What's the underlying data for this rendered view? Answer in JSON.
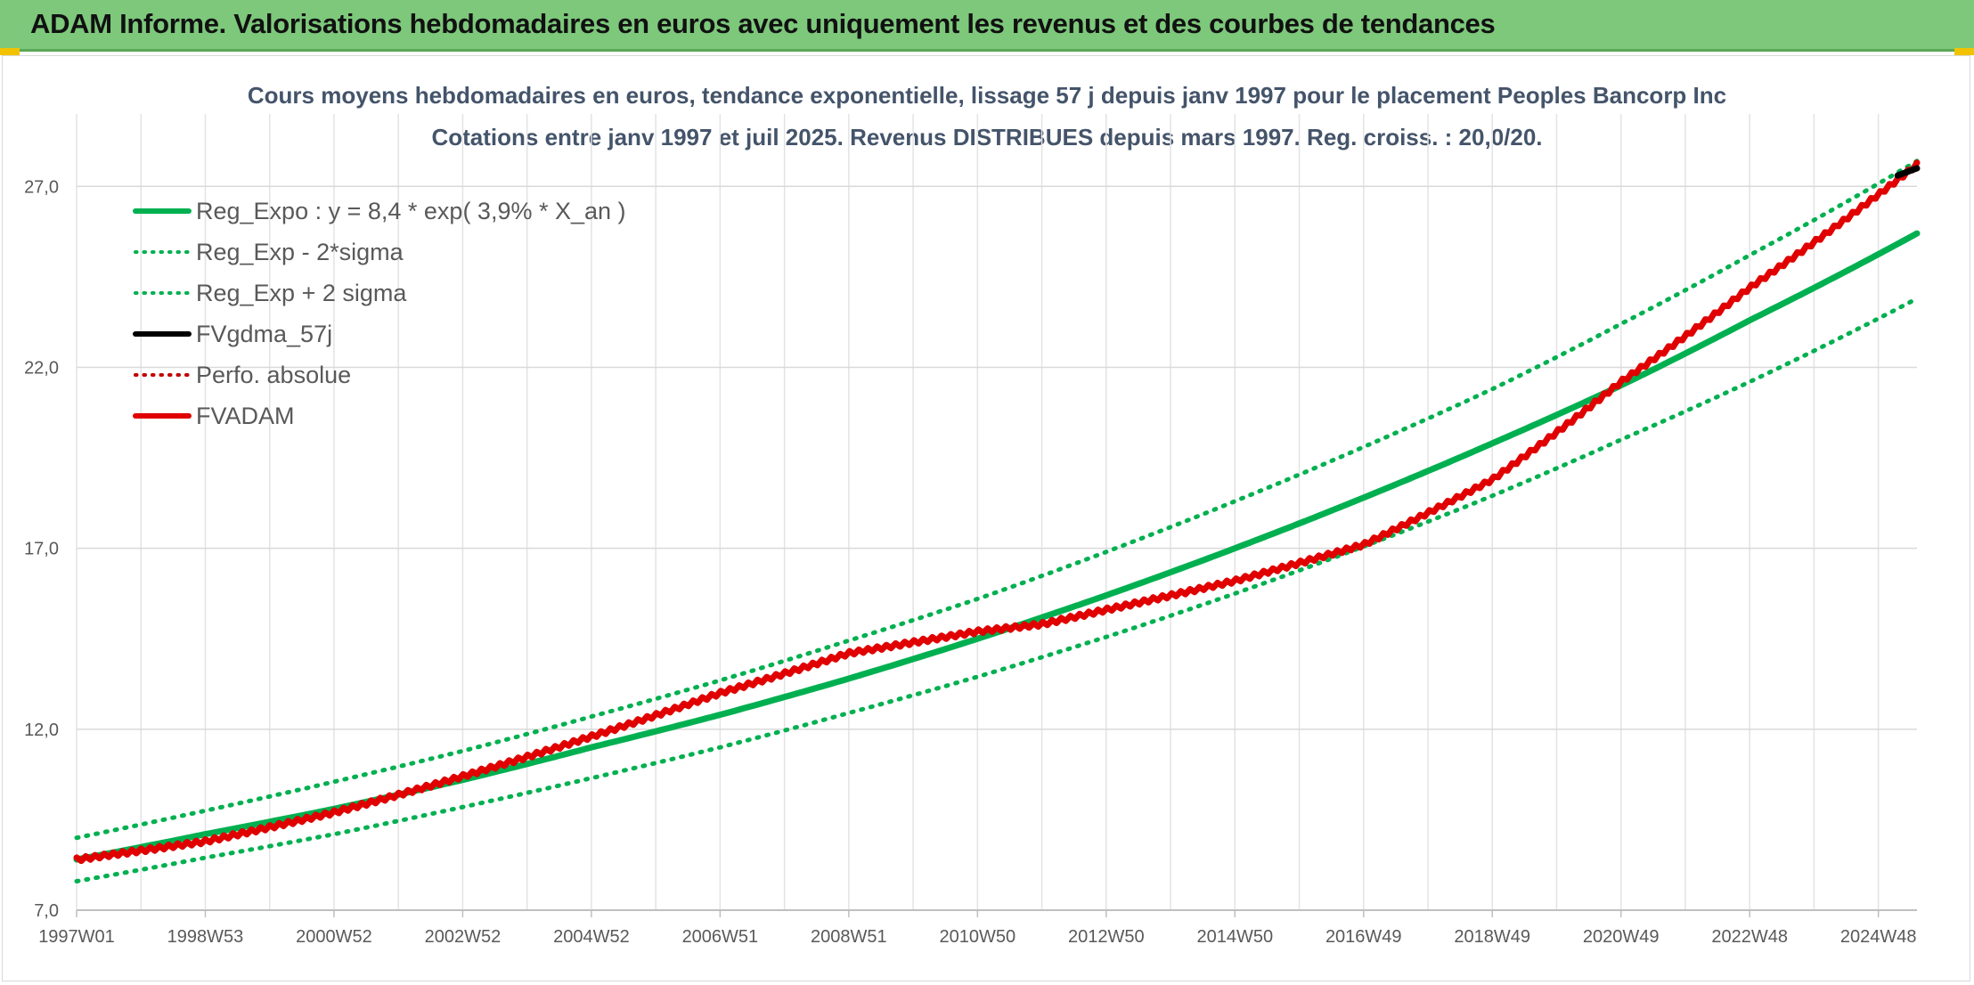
{
  "header": {
    "title": "ADAM Informe. Valorisations hebdomadaires en euros avec uniquement les revenus et des courbes de tendances",
    "color": "#7dc87b",
    "accent": "#f2c200"
  },
  "chart_data": {
    "type": "line",
    "title": "Cours moyens hebdomadaires en euros, tendance exponentielle, lissage 57 j depuis janv 1997 pour le placement Peoples Bancorp Inc",
    "subtitle": "Cotations entre janv 1997 et juil 2025. Revenus DISTRIBUES depuis mars 1997. Reg. croiss. : 20,0/20.",
    "xlabel": "",
    "ylabel": "",
    "x_tick_labels": [
      "1997W01",
      "1998W53",
      "2000W52",
      "2002W52",
      "2004W52",
      "2006W51",
      "2008W51",
      "2010W50",
      "2012W50",
      "2014W50",
      "2016W49",
      "2018W49",
      "2020W49",
      "2022W48",
      "2024W48"
    ],
    "x_range_years": [
      1997.0,
      2025.6
    ],
    "ylim": [
      7.0,
      29.0
    ],
    "y_ticks": [
      "7,0",
      "12,0",
      "17,0",
      "22,0",
      "27,0"
    ],
    "grid": true,
    "legend_position": "top-left",
    "series": [
      {
        "name": "Reg_Expo : y = 8,4 * exp( 3,9% *  X_an )",
        "style": "solid",
        "color": "#00b050",
        "x": [
          1997,
          1999,
          2001,
          2003,
          2005,
          2007,
          2009,
          2011,
          2013,
          2015,
          2017,
          2019,
          2021,
          2023,
          2025.6
        ],
        "values": [
          8.4,
          9.1,
          9.8,
          10.6,
          11.5,
          12.4,
          13.4,
          14.5,
          15.7,
          17.0,
          18.4,
          19.9,
          21.5,
          23.3,
          25.7
        ]
      },
      {
        "name": "Reg_Exp - 2*sigma",
        "style": "dotted",
        "color": "#00b050",
        "x": [
          1997,
          1999,
          2001,
          2003,
          2005,
          2007,
          2009,
          2011,
          2013,
          2015,
          2017,
          2019,
          2021,
          2023,
          2025.6
        ],
        "values": [
          7.8,
          8.45,
          9.1,
          9.85,
          10.65,
          11.5,
          12.45,
          13.45,
          14.55,
          15.75,
          17.05,
          18.45,
          20.0,
          21.6,
          23.9
        ]
      },
      {
        "name": "Reg_Exp + 2 sigma",
        "style": "dotted",
        "color": "#00b050",
        "x": [
          1997,
          1999,
          2001,
          2003,
          2005,
          2007,
          2009,
          2011,
          2013,
          2015,
          2017,
          2019,
          2021,
          2023,
          2025.6
        ],
        "values": [
          9.0,
          9.75,
          10.55,
          11.4,
          12.35,
          13.35,
          14.45,
          15.6,
          16.9,
          18.3,
          19.8,
          21.4,
          23.2,
          25.1,
          27.7
        ]
      },
      {
        "name": "FVgdma_57j",
        "style": "solid",
        "color": "#000000",
        "x": [
          2025.3,
          2025.6
        ],
        "values": [
          27.3,
          27.5
        ]
      },
      {
        "name": "Perfo. absolue",
        "style": "dotted",
        "color": "#c00000",
        "x": [],
        "values": []
      },
      {
        "name": "FVADAM",
        "style": "solid",
        "color": "#e00000",
        "x": [
          1997,
          1999,
          2001,
          2003,
          2005,
          2007,
          2009,
          2010,
          2011,
          2012,
          2013,
          2015,
          2017,
          2019,
          2021,
          2023,
          2025.6
        ],
        "values": [
          8.4,
          8.9,
          9.7,
          10.7,
          11.8,
          13.0,
          14.1,
          14.4,
          14.7,
          14.9,
          15.3,
          16.1,
          17.1,
          18.9,
          21.6,
          24.2,
          27.6
        ]
      }
    ]
  }
}
